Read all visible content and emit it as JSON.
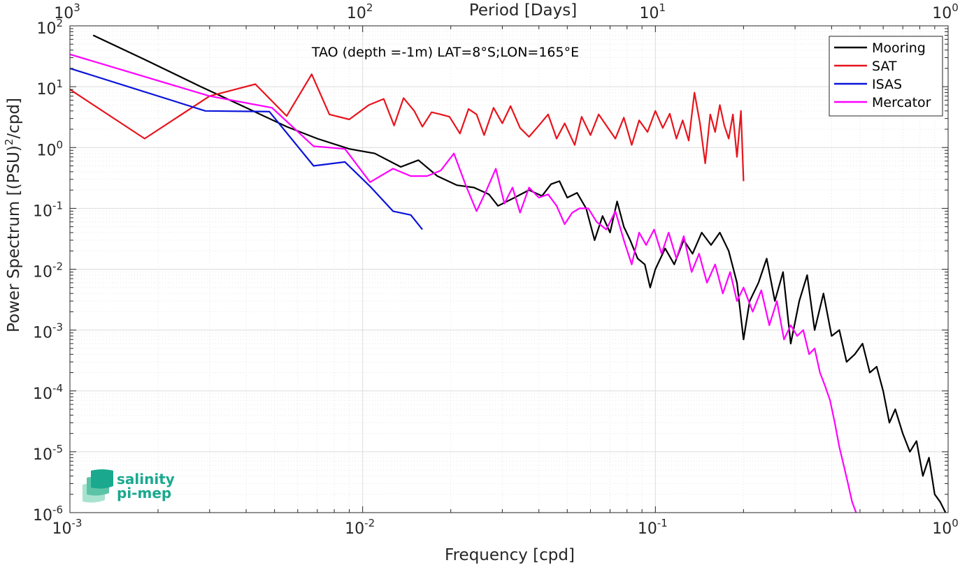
{
  "chart_data": {
    "type": "line",
    "title": "TAO (depth =-1m) LAT=8°S;LON=165°E",
    "xlabel": "Frequency [cpd]",
    "ylabel": "Power Spectrum [(PSU)²/cpd]",
    "ylabel_main": "Power Spectrum [(PSU)",
    "ylabel_sup": "2",
    "ylabel_tail": "/cpd]",
    "x2label": "Period [Days]",
    "xscale": "log",
    "yscale": "log",
    "xlim": [
      0.001,
      1
    ],
    "ylim": [
      1e-06,
      100
    ],
    "grid": true,
    "legend_position": "top-right",
    "x_ticks": [
      {
        "base": "10",
        "exp": "-3"
      },
      {
        "base": "10",
        "exp": "-2"
      },
      {
        "base": "10",
        "exp": "-1"
      },
      {
        "base": "10",
        "exp": "0"
      }
    ],
    "x2_ticks": [
      {
        "base": "10",
        "exp": "3"
      },
      {
        "base": "10",
        "exp": "2"
      },
      {
        "base": "10",
        "exp": "1"
      },
      {
        "base": "10",
        "exp": "0"
      }
    ],
    "y_ticks": [
      {
        "base": "10",
        "exp": "2"
      },
      {
        "base": "10",
        "exp": "1"
      },
      {
        "base": "10",
        "exp": "0"
      },
      {
        "base": "10",
        "exp": "-1"
      },
      {
        "base": "10",
        "exp": "-2"
      },
      {
        "base": "10",
        "exp": "-3"
      },
      {
        "base": "10",
        "exp": "-4"
      },
      {
        "base": "10",
        "exp": "-5"
      },
      {
        "base": "10",
        "exp": "-6"
      }
    ],
    "series": [
      {
        "name": "Mooring",
        "color": "#000000",
        "points": [
          [
            0.0012,
            70
          ],
          [
            0.0018,
            28
          ],
          [
            0.0028,
            10
          ],
          [
            0.004,
            4.5
          ],
          [
            0.0055,
            2.2
          ],
          [
            0.007,
            1.4
          ],
          [
            0.009,
            0.95
          ],
          [
            0.011,
            0.8
          ],
          [
            0.0135,
            0.48
          ],
          [
            0.0155,
            0.62
          ],
          [
            0.018,
            0.34
          ],
          [
            0.021,
            0.24
          ],
          [
            0.024,
            0.22
          ],
          [
            0.027,
            0.17
          ],
          [
            0.029,
            0.11
          ],
          [
            0.033,
            0.15
          ],
          [
            0.037,
            0.2
          ],
          [
            0.041,
            0.16
          ],
          [
            0.044,
            0.25
          ],
          [
            0.047,
            0.28
          ],
          [
            0.05,
            0.15
          ],
          [
            0.054,
            0.18
          ],
          [
            0.058,
            0.1
          ],
          [
            0.062,
            0.03
          ],
          [
            0.066,
            0.075
          ],
          [
            0.07,
            0.04
          ],
          [
            0.074,
            0.13
          ],
          [
            0.078,
            0.05
          ],
          [
            0.082,
            0.03
          ],
          [
            0.087,
            0.015
          ],
          [
            0.092,
            0.012
          ],
          [
            0.096,
            0.005
          ],
          [
            0.1,
            0.01
          ],
          [
            0.108,
            0.022
          ],
          [
            0.116,
            0.012
          ],
          [
            0.125,
            0.03
          ],
          [
            0.134,
            0.018
          ],
          [
            0.144,
            0.04
          ],
          [
            0.155,
            0.025
          ],
          [
            0.166,
            0.04
          ],
          [
            0.178,
            0.02
          ],
          [
            0.19,
            0.006
          ],
          [
            0.2,
            0.0007
          ],
          [
            0.21,
            0.003
          ],
          [
            0.225,
            0.006
          ],
          [
            0.24,
            0.015
          ],
          [
            0.256,
            0.003
          ],
          [
            0.273,
            0.009
          ],
          [
            0.29,
            0.0006
          ],
          [
            0.31,
            0.003
          ],
          [
            0.33,
            0.008
          ],
          [
            0.35,
            0.001
          ],
          [
            0.375,
            0.004
          ],
          [
            0.4,
            0.0008
          ],
          [
            0.425,
            0.001
          ],
          [
            0.45,
            0.0003
          ],
          [
            0.48,
            0.0004
          ],
          [
            0.51,
            0.0006
          ],
          [
            0.54,
            0.0002
          ],
          [
            0.57,
            0.00025
          ],
          [
            0.6,
            0.0001
          ],
          [
            0.63,
            3e-05
          ],
          [
            0.66,
            5e-05
          ],
          [
            0.7,
            2e-05
          ],
          [
            0.74,
            1e-05
          ],
          [
            0.78,
            1.5e-05
          ],
          [
            0.82,
            4e-06
          ],
          [
            0.86,
            8e-06
          ],
          [
            0.9,
            2e-06
          ],
          [
            0.94,
            1.5e-06
          ],
          [
            0.98,
            1e-06
          ]
        ]
      },
      {
        "name": "SAT",
        "color": "#e8141c",
        "points": [
          [
            0.001,
            9
          ],
          [
            0.0018,
            1.4
          ],
          [
            0.003,
            7
          ],
          [
            0.0043,
            11
          ],
          [
            0.0055,
            3.3
          ],
          [
            0.0067,
            16
          ],
          [
            0.0077,
            3.5
          ],
          [
            0.009,
            2.9
          ],
          [
            0.0105,
            5
          ],
          [
            0.0118,
            6.3
          ],
          [
            0.0128,
            2.3
          ],
          [
            0.0138,
            6.5
          ],
          [
            0.015,
            4
          ],
          [
            0.016,
            2.2
          ],
          [
            0.0172,
            3.8
          ],
          [
            0.0185,
            3.5
          ],
          [
            0.0198,
            3.2
          ],
          [
            0.0215,
            1.7
          ],
          [
            0.023,
            4.3
          ],
          [
            0.0245,
            3.5
          ],
          [
            0.026,
            1.6
          ],
          [
            0.028,
            4.5
          ],
          [
            0.03,
            2.5
          ],
          [
            0.032,
            4.8
          ],
          [
            0.0345,
            2.1
          ],
          [
            0.037,
            1.5
          ],
          [
            0.04,
            2.3
          ],
          [
            0.043,
            3.5
          ],
          [
            0.046,
            1.4
          ],
          [
            0.049,
            2.5
          ],
          [
            0.053,
            1.1
          ],
          [
            0.056,
            3.2
          ],
          [
            0.06,
            1.6
          ],
          [
            0.064,
            3.5
          ],
          [
            0.068,
            2.3
          ],
          [
            0.073,
            1.4
          ],
          [
            0.078,
            3.1
          ],
          [
            0.083,
            1.1
          ],
          [
            0.088,
            2.8
          ],
          [
            0.094,
            1.8
          ],
          [
            0.1,
            4
          ],
          [
            0.106,
            2.1
          ],
          [
            0.112,
            3.6
          ],
          [
            0.118,
            1.4
          ],
          [
            0.124,
            2.8
          ],
          [
            0.13,
            1.3
          ],
          [
            0.136,
            8
          ],
          [
            0.142,
            2.5
          ],
          [
            0.148,
            0.55
          ],
          [
            0.154,
            3.5
          ],
          [
            0.16,
            1.8
          ],
          [
            0.166,
            5
          ],
          [
            0.172,
            2.3
          ],
          [
            0.178,
            1.4
          ],
          [
            0.184,
            3.5
          ],
          [
            0.19,
            0.7
          ],
          [
            0.196,
            4
          ],
          [
            0.2,
            0.28
          ]
        ]
      },
      {
        "name": "ISAS",
        "color": "#0b14d9",
        "points": [
          [
            0.001,
            20
          ],
          [
            0.0029,
            4
          ],
          [
            0.0048,
            3.9
          ],
          [
            0.0068,
            0.5
          ],
          [
            0.0087,
            0.58
          ],
          [
            0.0106,
            0.23
          ],
          [
            0.0127,
            0.09
          ],
          [
            0.0146,
            0.078
          ],
          [
            0.016,
            0.045
          ]
        ]
      },
      {
        "name": "Mercator",
        "color": "#ff00ff",
        "points": [
          [
            0.001,
            34
          ],
          [
            0.003,
            7
          ],
          [
            0.0049,
            4.5
          ],
          [
            0.0068,
            1.05
          ],
          [
            0.0087,
            0.95
          ],
          [
            0.0106,
            0.27
          ],
          [
            0.0127,
            0.45
          ],
          [
            0.0146,
            0.34
          ],
          [
            0.0166,
            0.34
          ],
          [
            0.0185,
            0.42
          ],
          [
            0.0205,
            0.8
          ],
          [
            0.0225,
            0.24
          ],
          [
            0.0245,
            0.09
          ],
          [
            0.0265,
            0.2
          ],
          [
            0.0285,
            0.45
          ],
          [
            0.0305,
            0.12
          ],
          [
            0.0325,
            0.22
          ],
          [
            0.0345,
            0.085
          ],
          [
            0.037,
            0.22
          ],
          [
            0.04,
            0.15
          ],
          [
            0.043,
            0.17
          ],
          [
            0.046,
            0.11
          ],
          [
            0.049,
            0.055
          ],
          [
            0.052,
            0.085
          ],
          [
            0.055,
            0.1
          ],
          [
            0.059,
            0.1
          ],
          [
            0.063,
            0.06
          ],
          [
            0.068,
            0.045
          ],
          [
            0.073,
            0.09
          ],
          [
            0.078,
            0.03
          ],
          [
            0.083,
            0.012
          ],
          [
            0.088,
            0.04
          ],
          [
            0.093,
            0.025
          ],
          [
            0.099,
            0.045
          ],
          [
            0.105,
            0.018
          ],
          [
            0.111,
            0.04
          ],
          [
            0.118,
            0.015
          ],
          [
            0.125,
            0.035
          ],
          [
            0.133,
            0.009
          ],
          [
            0.141,
            0.018
          ],
          [
            0.15,
            0.006
          ],
          [
            0.16,
            0.012
          ],
          [
            0.17,
            0.004
          ],
          [
            0.18,
            0.009
          ],
          [
            0.19,
            0.003
          ],
          [
            0.2,
            0.005
          ],
          [
            0.215,
            0.002
          ],
          [
            0.23,
            0.0045
          ],
          [
            0.245,
            0.0012
          ],
          [
            0.26,
            0.003
          ],
          [
            0.275,
            0.0007
          ],
          [
            0.29,
            0.0012
          ],
          [
            0.305,
            0.0008
          ],
          [
            0.32,
            0.001
          ],
          [
            0.335,
            0.0004
          ],
          [
            0.35,
            0.0005
          ],
          [
            0.365,
            0.0002
          ],
          [
            0.38,
            0.00012
          ],
          [
            0.395,
            7e-05
          ],
          [
            0.41,
            3e-05
          ],
          [
            0.425,
            1.2e-05
          ],
          [
            0.44,
            6e-06
          ],
          [
            0.455,
            3e-06
          ],
          [
            0.47,
            1.5e-06
          ],
          [
            0.485,
            1e-06
          ]
        ]
      }
    ]
  },
  "logo": {
    "line1": "salinity",
    "line2": "pi-mep"
  }
}
